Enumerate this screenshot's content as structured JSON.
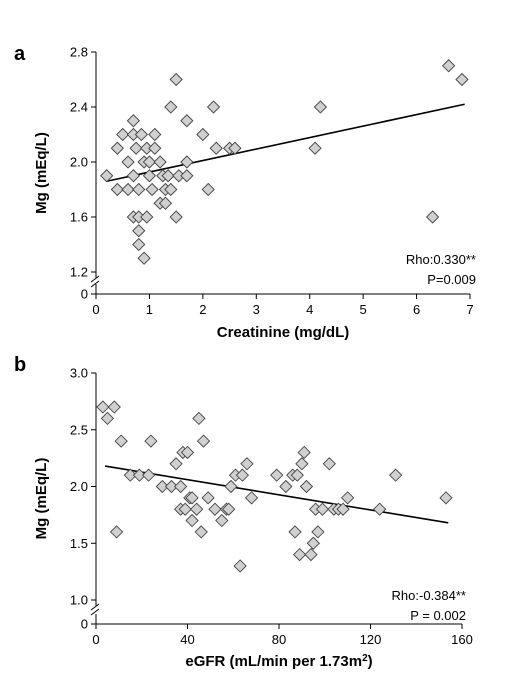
{
  "chart_data": [
    {
      "type": "scatter",
      "panel": "a",
      "xlabel": "Creatinine (mg/dL)",
      "ylabel": "Mg (mEq/L)",
      "xlim": [
        0,
        7
      ],
      "ylim": [
        1.2,
        2.8
      ],
      "y_axis_break": true,
      "y_zero_label": "0",
      "x_ticks": [
        "0",
        "1",
        "2",
        "3",
        "4",
        "5",
        "6",
        "7"
      ],
      "y_ticks": [
        "1.2",
        "1.6",
        "2.0",
        "2.4",
        "2.8"
      ],
      "annotation": [
        "Rho:0.330**",
        "P=0.009"
      ],
      "trendline": {
        "x": [
          0.2,
          6.9
        ],
        "y": [
          1.86,
          2.42
        ]
      },
      "points": [
        {
          "x": 0.2,
          "y": 1.9
        },
        {
          "x": 0.4,
          "y": 1.8
        },
        {
          "x": 0.4,
          "y": 2.1
        },
        {
          "x": 0.5,
          "y": 2.2
        },
        {
          "x": 0.6,
          "y": 1.8
        },
        {
          "x": 0.6,
          "y": 2.0
        },
        {
          "x": 0.7,
          "y": 1.6
        },
        {
          "x": 0.7,
          "y": 1.9
        },
        {
          "x": 0.7,
          "y": 2.2
        },
        {
          "x": 0.7,
          "y": 2.3
        },
        {
          "x": 0.75,
          "y": 2.1
        },
        {
          "x": 0.8,
          "y": 1.8
        },
        {
          "x": 0.8,
          "y": 1.6
        },
        {
          "x": 0.8,
          "y": 1.5
        },
        {
          "x": 0.8,
          "y": 1.4
        },
        {
          "x": 0.85,
          "y": 2.2
        },
        {
          "x": 0.9,
          "y": 2.0
        },
        {
          "x": 0.9,
          "y": 1.3
        },
        {
          "x": 0.95,
          "y": 1.6
        },
        {
          "x": 0.95,
          "y": 2.1
        },
        {
          "x": 1.0,
          "y": 2.0
        },
        {
          "x": 1.0,
          "y": 1.9
        },
        {
          "x": 1.05,
          "y": 1.8
        },
        {
          "x": 1.1,
          "y": 2.2
        },
        {
          "x": 1.1,
          "y": 2.1
        },
        {
          "x": 1.2,
          "y": 1.7
        },
        {
          "x": 1.2,
          "y": 2.0
        },
        {
          "x": 1.25,
          "y": 1.9
        },
        {
          "x": 1.3,
          "y": 1.8
        },
        {
          "x": 1.3,
          "y": 1.7
        },
        {
          "x": 1.35,
          "y": 1.9
        },
        {
          "x": 1.4,
          "y": 2.4
        },
        {
          "x": 1.4,
          "y": 1.8
        },
        {
          "x": 1.5,
          "y": 2.6
        },
        {
          "x": 1.5,
          "y": 1.6
        },
        {
          "x": 1.55,
          "y": 1.9
        },
        {
          "x": 1.7,
          "y": 1.9
        },
        {
          "x": 1.7,
          "y": 2.0
        },
        {
          "x": 1.7,
          "y": 2.3
        },
        {
          "x": 2.0,
          "y": 2.2
        },
        {
          "x": 2.1,
          "y": 1.8
        },
        {
          "x": 2.2,
          "y": 2.4
        },
        {
          "x": 2.25,
          "y": 2.1
        },
        {
          "x": 2.5,
          "y": 2.1
        },
        {
          "x": 2.6,
          "y": 2.1
        },
        {
          "x": 4.1,
          "y": 2.1
        },
        {
          "x": 4.2,
          "y": 2.4
        },
        {
          "x": 6.3,
          "y": 1.6
        },
        {
          "x": 6.6,
          "y": 2.7
        },
        {
          "x": 6.85,
          "y": 2.6
        }
      ]
    },
    {
      "type": "scatter",
      "panel": "b",
      "xlabel": "eGFR (mL/min per 1.73m",
      "xlabel_sup": "2",
      "xlabel_end": ")",
      "ylabel": "Mg (mEq/L)",
      "xlim": [
        0,
        160
      ],
      "ylim": [
        1.0,
        3.0
      ],
      "y_axis_break": true,
      "y_zero_label": "0",
      "x_ticks": [
        "0",
        "40",
        "80",
        "120",
        "160"
      ],
      "y_ticks": [
        "1.0",
        "1.5",
        "2.0",
        "2.5",
        "3.0"
      ],
      "annotation": [
        "Rho:-0.384**",
        "P = 0.002"
      ],
      "trendline": {
        "x": [
          4,
          154
        ],
        "y": [
          2.18,
          1.68
        ]
      },
      "points": [
        {
          "x": 3,
          "y": 2.7
        },
        {
          "x": 5,
          "y": 2.6
        },
        {
          "x": 8,
          "y": 2.7
        },
        {
          "x": 9,
          "y": 1.6
        },
        {
          "x": 11,
          "y": 2.4
        },
        {
          "x": 15,
          "y": 2.1
        },
        {
          "x": 19,
          "y": 2.1
        },
        {
          "x": 23,
          "y": 2.1
        },
        {
          "x": 24,
          "y": 2.4
        },
        {
          "x": 29,
          "y": 2.0
        },
        {
          "x": 33,
          "y": 2.0
        },
        {
          "x": 35,
          "y": 2.2
        },
        {
          "x": 37,
          "y": 2.0
        },
        {
          "x": 37,
          "y": 1.8
        },
        {
          "x": 38,
          "y": 2.3
        },
        {
          "x": 39,
          "y": 1.8
        },
        {
          "x": 40,
          "y": 2.3
        },
        {
          "x": 41,
          "y": 1.9
        },
        {
          "x": 42,
          "y": 1.9
        },
        {
          "x": 42,
          "y": 1.7
        },
        {
          "x": 44,
          "y": 1.8
        },
        {
          "x": 45,
          "y": 2.6
        },
        {
          "x": 46,
          "y": 1.6
        },
        {
          "x": 47,
          "y": 2.4
        },
        {
          "x": 49,
          "y": 1.9
        },
        {
          "x": 52,
          "y": 1.8
        },
        {
          "x": 55,
          "y": 1.7
        },
        {
          "x": 57,
          "y": 1.8
        },
        {
          "x": 58,
          "y": 1.8
        },
        {
          "x": 59,
          "y": 2.0
        },
        {
          "x": 61,
          "y": 2.1
        },
        {
          "x": 63,
          "y": 1.3
        },
        {
          "x": 64,
          "y": 2.1
        },
        {
          "x": 66,
          "y": 2.2
        },
        {
          "x": 68,
          "y": 1.9
        },
        {
          "x": 79,
          "y": 2.1
        },
        {
          "x": 83,
          "y": 2.0
        },
        {
          "x": 86,
          "y": 2.1
        },
        {
          "x": 87,
          "y": 1.6
        },
        {
          "x": 88,
          "y": 2.1
        },
        {
          "x": 89,
          "y": 1.4
        },
        {
          "x": 90,
          "y": 2.2
        },
        {
          "x": 91,
          "y": 2.3
        },
        {
          "x": 92,
          "y": 2.0
        },
        {
          "x": 94,
          "y": 1.4
        },
        {
          "x": 95,
          "y": 1.5
        },
        {
          "x": 96,
          "y": 1.8
        },
        {
          "x": 97,
          "y": 1.6
        },
        {
          "x": 99,
          "y": 1.8
        },
        {
          "x": 102,
          "y": 2.2
        },
        {
          "x": 104,
          "y": 1.8
        },
        {
          "x": 106,
          "y": 1.8
        },
        {
          "x": 108,
          "y": 1.8
        },
        {
          "x": 110,
          "y": 1.9
        },
        {
          "x": 124,
          "y": 1.8
        },
        {
          "x": 131,
          "y": 2.1
        },
        {
          "x": 153,
          "y": 1.9
        }
      ]
    }
  ]
}
